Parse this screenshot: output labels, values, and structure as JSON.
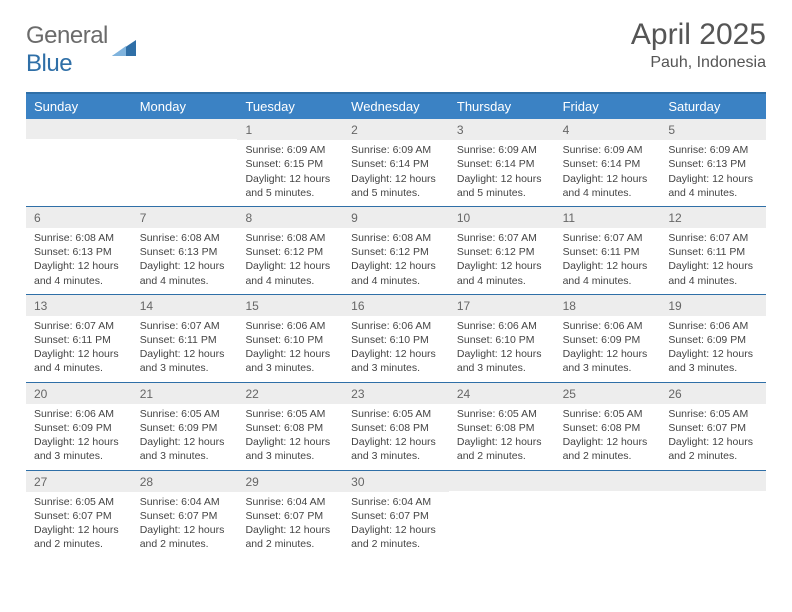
{
  "logo": {
    "word1": "General",
    "word2": "Blue"
  },
  "title": "April 2025",
  "location": "Pauh, Indonesia",
  "colors": {
    "header_bg": "#3b82c4",
    "header_border": "#2f6fa7",
    "week_rule": "#2f6fa7",
    "daynum_bg": "#ededed",
    "text": "#444444",
    "title_text": "#555555",
    "logo_gray": "#6b6b6b",
    "logo_blue": "#2f6fa7"
  },
  "day_names": [
    "Sunday",
    "Monday",
    "Tuesday",
    "Wednesday",
    "Thursday",
    "Friday",
    "Saturday"
  ],
  "weeks": [
    [
      null,
      null,
      {
        "n": "1",
        "sr": "6:09 AM",
        "ss": "6:15 PM",
        "dl": "12 hours and 5 minutes."
      },
      {
        "n": "2",
        "sr": "6:09 AM",
        "ss": "6:14 PM",
        "dl": "12 hours and 5 minutes."
      },
      {
        "n": "3",
        "sr": "6:09 AM",
        "ss": "6:14 PM",
        "dl": "12 hours and 5 minutes."
      },
      {
        "n": "4",
        "sr": "6:09 AM",
        "ss": "6:14 PM",
        "dl": "12 hours and 4 minutes."
      },
      {
        "n": "5",
        "sr": "6:09 AM",
        "ss": "6:13 PM",
        "dl": "12 hours and 4 minutes."
      }
    ],
    [
      {
        "n": "6",
        "sr": "6:08 AM",
        "ss": "6:13 PM",
        "dl": "12 hours and 4 minutes."
      },
      {
        "n": "7",
        "sr": "6:08 AM",
        "ss": "6:13 PM",
        "dl": "12 hours and 4 minutes."
      },
      {
        "n": "8",
        "sr": "6:08 AM",
        "ss": "6:12 PM",
        "dl": "12 hours and 4 minutes."
      },
      {
        "n": "9",
        "sr": "6:08 AM",
        "ss": "6:12 PM",
        "dl": "12 hours and 4 minutes."
      },
      {
        "n": "10",
        "sr": "6:07 AM",
        "ss": "6:12 PM",
        "dl": "12 hours and 4 minutes."
      },
      {
        "n": "11",
        "sr": "6:07 AM",
        "ss": "6:11 PM",
        "dl": "12 hours and 4 minutes."
      },
      {
        "n": "12",
        "sr": "6:07 AM",
        "ss": "6:11 PM",
        "dl": "12 hours and 4 minutes."
      }
    ],
    [
      {
        "n": "13",
        "sr": "6:07 AM",
        "ss": "6:11 PM",
        "dl": "12 hours and 4 minutes."
      },
      {
        "n": "14",
        "sr": "6:07 AM",
        "ss": "6:11 PM",
        "dl": "12 hours and 3 minutes."
      },
      {
        "n": "15",
        "sr": "6:06 AM",
        "ss": "6:10 PM",
        "dl": "12 hours and 3 minutes."
      },
      {
        "n": "16",
        "sr": "6:06 AM",
        "ss": "6:10 PM",
        "dl": "12 hours and 3 minutes."
      },
      {
        "n": "17",
        "sr": "6:06 AM",
        "ss": "6:10 PM",
        "dl": "12 hours and 3 minutes."
      },
      {
        "n": "18",
        "sr": "6:06 AM",
        "ss": "6:09 PM",
        "dl": "12 hours and 3 minutes."
      },
      {
        "n": "19",
        "sr": "6:06 AM",
        "ss": "6:09 PM",
        "dl": "12 hours and 3 minutes."
      }
    ],
    [
      {
        "n": "20",
        "sr": "6:06 AM",
        "ss": "6:09 PM",
        "dl": "12 hours and 3 minutes."
      },
      {
        "n": "21",
        "sr": "6:05 AM",
        "ss": "6:09 PM",
        "dl": "12 hours and 3 minutes."
      },
      {
        "n": "22",
        "sr": "6:05 AM",
        "ss": "6:08 PM",
        "dl": "12 hours and 3 minutes."
      },
      {
        "n": "23",
        "sr": "6:05 AM",
        "ss": "6:08 PM",
        "dl": "12 hours and 3 minutes."
      },
      {
        "n": "24",
        "sr": "6:05 AM",
        "ss": "6:08 PM",
        "dl": "12 hours and 2 minutes."
      },
      {
        "n": "25",
        "sr": "6:05 AM",
        "ss": "6:08 PM",
        "dl": "12 hours and 2 minutes."
      },
      {
        "n": "26",
        "sr": "6:05 AM",
        "ss": "6:07 PM",
        "dl": "12 hours and 2 minutes."
      }
    ],
    [
      {
        "n": "27",
        "sr": "6:05 AM",
        "ss": "6:07 PM",
        "dl": "12 hours and 2 minutes."
      },
      {
        "n": "28",
        "sr": "6:04 AM",
        "ss": "6:07 PM",
        "dl": "12 hours and 2 minutes."
      },
      {
        "n": "29",
        "sr": "6:04 AM",
        "ss": "6:07 PM",
        "dl": "12 hours and 2 minutes."
      },
      {
        "n": "30",
        "sr": "6:04 AM",
        "ss": "6:07 PM",
        "dl": "12 hours and 2 minutes."
      },
      null,
      null,
      null
    ]
  ],
  "labels": {
    "sunrise": "Sunrise:",
    "sunset": "Sunset:",
    "daylight": "Daylight:"
  }
}
